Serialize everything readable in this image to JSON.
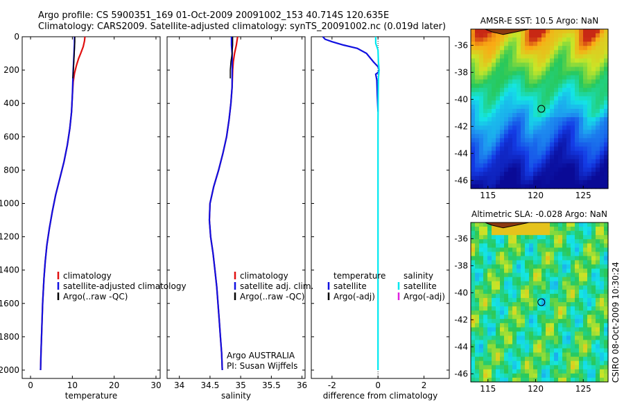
{
  "header": {
    "line1": "Argo profile: CS 5900351_169 01-Oct-2009 20091002_153 40.714S 120.635E",
    "line2": "Climatology: CARS2009. Satellite-adjusted climatology: synTS_20091002.nc (0.019d later)"
  },
  "colors": {
    "red": "#e01010",
    "blue": "#1010e0",
    "black": "#000000",
    "cyan": "#00e8f0",
    "magenta": "#e020e0"
  },
  "chart_data": [
    {
      "type": "line",
      "id": "temperature",
      "xlabel": "temperature",
      "ylabel": "",
      "xlim": [
        -2,
        31
      ],
      "ylim": [
        2050,
        0
      ],
      "xticks": [
        "0",
        "10",
        "20",
        "30"
      ],
      "yticks": [
        "0",
        "200",
        "400",
        "600",
        "800",
        "1000",
        "1200",
        "1400",
        "1600",
        "1800",
        "2000"
      ],
      "legend": [
        "climatology",
        "satellite-adjusted climatology",
        "Argo(..raw -QC)"
      ],
      "series": [
        {
          "name": "climatology",
          "color": "red",
          "points": [
            [
              13.0,
              0
            ],
            [
              12.9,
              25
            ],
            [
              12.6,
              60
            ],
            [
              12.0,
              100
            ],
            [
              11.5,
              130
            ],
            [
              11.0,
              170
            ],
            [
              10.5,
              220
            ],
            [
              10.2,
              270
            ],
            [
              10.0,
              350
            ],
            [
              9.8,
              450
            ],
            [
              9.4,
              550
            ],
            [
              8.8,
              650
            ],
            [
              8.0,
              750
            ],
            [
              7.0,
              850
            ],
            [
              6.0,
              950
            ],
            [
              5.2,
              1050
            ],
            [
              4.5,
              1150
            ],
            [
              3.9,
              1250
            ],
            [
              3.5,
              1350
            ],
            [
              3.2,
              1450
            ],
            [
              2.9,
              1600
            ],
            [
              2.7,
              1750
            ],
            [
              2.5,
              1900
            ],
            [
              2.4,
              2000
            ]
          ]
        },
        {
          "name": "satellite-adjusted climatology",
          "color": "blue",
          "points": [
            [
              10.5,
              0
            ],
            [
              10.5,
              40
            ],
            [
              10.4,
              100
            ],
            [
              10.3,
              150
            ],
            [
              10.2,
              200
            ],
            [
              10.1,
              270
            ],
            [
              10.0,
              350
            ],
            [
              9.8,
              450
            ],
            [
              9.4,
              550
            ],
            [
              8.8,
              650
            ],
            [
              8.0,
              750
            ],
            [
              7.0,
              850
            ],
            [
              6.0,
              950
            ],
            [
              5.2,
              1050
            ],
            [
              4.5,
              1150
            ],
            [
              3.9,
              1250
            ],
            [
              3.5,
              1350
            ],
            [
              3.2,
              1450
            ],
            [
              2.9,
              1600
            ],
            [
              2.7,
              1750
            ],
            [
              2.5,
              1900
            ],
            [
              2.4,
              2000
            ]
          ]
        },
        {
          "name": "Argo(..raw -QC)",
          "color": "black",
          "points": [
            [
              10.6,
              0
            ],
            [
              10.6,
              30
            ],
            [
              10.5,
              80
            ],
            [
              10.4,
              130
            ],
            [
              10.3,
              180
            ],
            [
              10.1,
              250
            ]
          ]
        }
      ]
    },
    {
      "type": "line",
      "id": "salinity",
      "xlabel": "salinity",
      "xlim": [
        33.8,
        36.05
      ],
      "ylim": [
        2050,
        0
      ],
      "xticks": [
        "34",
        "34.5",
        "35",
        "35.5",
        "36"
      ],
      "legend": [
        "climatology",
        "satellite adj. clim.",
        "Argo(..raw -QC)"
      ],
      "annotation": [
        "Argo AUSTRALIA",
        "PI: Susan Wijffels"
      ],
      "series": [
        {
          "name": "climatology",
          "color": "red",
          "points": [
            [
              34.95,
              0
            ],
            [
              34.93,
              50
            ],
            [
              34.9,
              100
            ],
            [
              34.88,
              150
            ],
            [
              34.87,
              200
            ],
            [
              34.86,
              300
            ],
            [
              34.84,
              400
            ],
            [
              34.81,
              500
            ],
            [
              34.77,
              600
            ],
            [
              34.71,
              700
            ],
            [
              34.64,
              800
            ],
            [
              34.56,
              900
            ],
            [
              34.5,
              1000
            ],
            [
              34.49,
              1100
            ],
            [
              34.51,
              1200
            ],
            [
              34.55,
              1300
            ],
            [
              34.58,
              1400
            ],
            [
              34.61,
              1500
            ],
            [
              34.63,
              1600
            ],
            [
              34.65,
              1700
            ],
            [
              34.67,
              1800
            ],
            [
              34.69,
              1900
            ],
            [
              34.7,
              2000
            ]
          ]
        },
        {
          "name": "satellite adj. clim.",
          "color": "blue",
          "points": [
            [
              34.85,
              0
            ],
            [
              34.85,
              50
            ],
            [
              34.86,
              100
            ],
            [
              34.86,
              150
            ],
            [
              34.86,
              200
            ],
            [
              34.86,
              300
            ],
            [
              34.84,
              400
            ],
            [
              34.81,
              500
            ],
            [
              34.77,
              600
            ],
            [
              34.71,
              700
            ],
            [
              34.64,
              800
            ],
            [
              34.56,
              900
            ],
            [
              34.5,
              1000
            ],
            [
              34.49,
              1100
            ],
            [
              34.51,
              1200
            ],
            [
              34.55,
              1300
            ],
            [
              34.58,
              1400
            ],
            [
              34.61,
              1500
            ],
            [
              34.63,
              1600
            ],
            [
              34.65,
              1700
            ],
            [
              34.67,
              1800
            ],
            [
              34.69,
              1900
            ],
            [
              34.7,
              2000
            ]
          ]
        },
        {
          "name": "Argo(..raw -QC)",
          "color": "black",
          "points": [
            [
              34.87,
              0
            ],
            [
              34.87,
              50
            ],
            [
              34.86,
              100
            ],
            [
              34.84,
              150
            ],
            [
              34.83,
              200
            ],
            [
              34.83,
              250
            ]
          ]
        }
      ]
    },
    {
      "type": "line",
      "id": "difference",
      "xlabel": "difference from climatology",
      "xlim": [
        -2.9,
        3.1
      ],
      "ylim": [
        2050,
        0
      ],
      "xticks": [
        "-2",
        "0",
        "2"
      ],
      "legend_left": [
        "temperature",
        "satellite",
        "Argo(-adj)"
      ],
      "legend_right": [
        "salinity",
        "satellite",
        "Argo(-adj)"
      ],
      "series": [
        {
          "name": "temperature satellite",
          "color": "blue",
          "points": [
            [
              -2.4,
              0
            ],
            [
              -2.3,
              15
            ],
            [
              -2.0,
              30
            ],
            [
              -1.5,
              50
            ],
            [
              -0.9,
              70
            ],
            [
              -0.5,
              100
            ],
            [
              -0.2,
              150
            ],
            [
              0.0,
              180
            ],
            [
              0.05,
              200
            ],
            [
              0.0,
              215
            ],
            [
              -0.1,
              225
            ],
            [
              -0.05,
              260
            ],
            [
              -0.03,
              350
            ],
            [
              0,
              450
            ]
          ]
        },
        {
          "name": "salinity satellite",
          "color": "cyan",
          "points": [
            [
              -0.1,
              0
            ],
            [
              -0.1,
              40
            ],
            [
              0.0,
              80
            ],
            [
              0.02,
              150
            ],
            [
              0.05,
              200
            ],
            [
              0.02,
              250
            ],
            [
              0.01,
              350
            ],
            [
              0.0,
              500
            ],
            [
              0.0,
              2000
            ]
          ]
        }
      ]
    },
    {
      "type": "heatmap",
      "id": "sst-map",
      "title": "AMSR-E SST: 10.5 Argo: NaN",
      "xticks": [
        "115",
        "120",
        "125"
      ],
      "yticks": [
        "-36",
        "-38",
        "-40",
        "-42",
        "-44",
        "-46"
      ],
      "xlim": [
        113.2,
        127.6
      ],
      "ylim": [
        -46.6,
        -34.8
      ],
      "marker": [
        120.6,
        -40.7
      ]
    },
    {
      "type": "heatmap",
      "id": "sla-map",
      "title": "Altimetric SLA: -0.028 Argo: NaN",
      "xticks": [
        "115",
        "120",
        "125"
      ],
      "yticks": [
        "-36",
        "-38",
        "-40",
        "-42",
        "-44",
        "-46"
      ],
      "xlim": [
        113.2,
        127.6
      ],
      "ylim": [
        -46.6,
        -34.8
      ],
      "marker": [
        120.6,
        -40.7
      ]
    }
  ],
  "side_label": "CSIRO 08-Oct-2009 10:30:24"
}
